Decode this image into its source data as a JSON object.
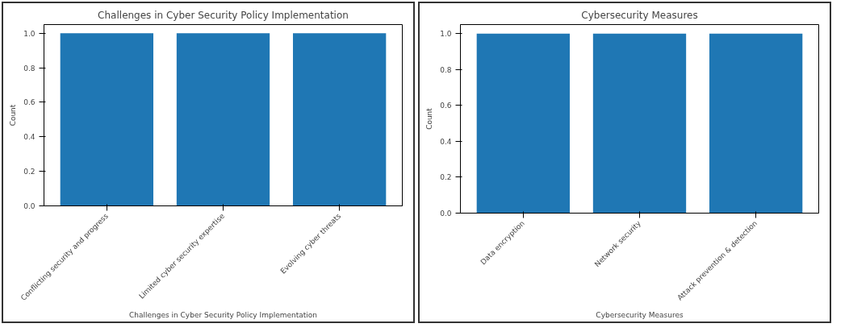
{
  "chart_data": [
    {
      "type": "bar",
      "title": "Challenges in Cyber Security Policy Implementation",
      "xlabel": "Challenges in Cyber Security Policy Implementation",
      "ylabel": "Count",
      "categories": [
        "Conflicting security and progress",
        "Limited cyber security expertise",
        "Evolving cyber threats"
      ],
      "values": [
        1,
        1,
        1
      ],
      "color": "#1f77b4",
      "ylim": [
        0,
        1.05
      ],
      "yticks": [
        {
          "value": 0,
          "label": "0.0"
        },
        {
          "value": 0.2,
          "label": "0.2"
        },
        {
          "value": 0.4,
          "label": "0.4"
        },
        {
          "value": 0.6,
          "label": "0.6"
        },
        {
          "value": 0.8,
          "label": "0.8"
        },
        {
          "value": 1,
          "label": "1.0"
        }
      ],
      "grid": false
    },
    {
      "type": "bar",
      "title": "Cybersecurity Measures",
      "xlabel": "Cybersecurity Measures",
      "ylabel": "Count",
      "categories": [
        "Data encryption",
        "Network security",
        "Attack prevention & detection"
      ],
      "values": [
        1,
        1,
        1
      ],
      "color": "#1f77b4",
      "ylim": [
        0,
        1.05
      ],
      "yticks": [
        {
          "value": 0,
          "label": "0.0"
        },
        {
          "value": 0.2,
          "label": "0.2"
        },
        {
          "value": 0.4,
          "label": "0.4"
        },
        {
          "value": 0.6,
          "label": "0.6"
        },
        {
          "value": 0.8,
          "label": "0.8"
        },
        {
          "value": 1,
          "label": "1.0"
        }
      ],
      "grid": false
    }
  ]
}
